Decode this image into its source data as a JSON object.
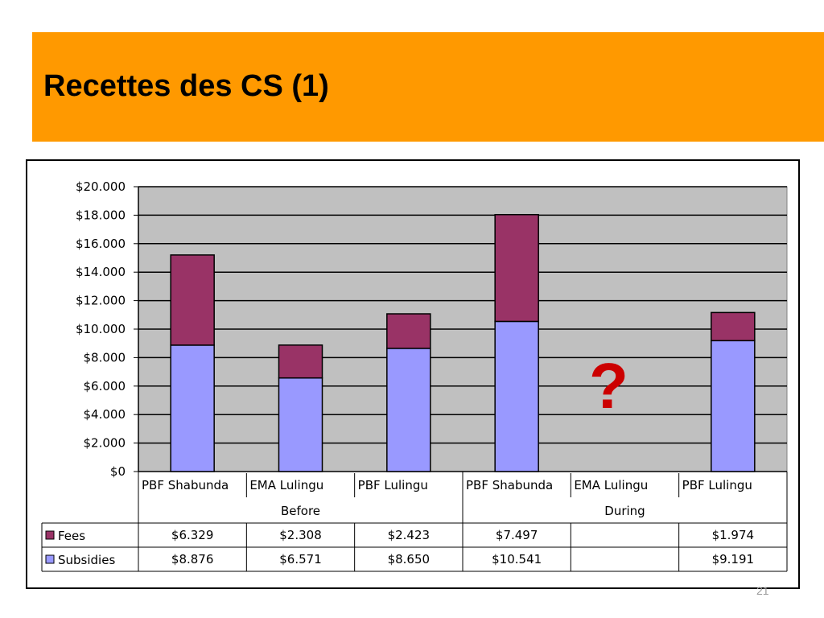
{
  "slide": {
    "title": "Recettes des CS (1)",
    "page_number": "21",
    "annotation": "?"
  },
  "colors": {
    "header": "#ff9900",
    "plot_bg": "#c0c0c0",
    "fees": "#993366",
    "subsidies": "#9999ff",
    "annotation": "#cc0000"
  },
  "chart_data": {
    "type": "bar",
    "stacked": true,
    "categories": [
      "PBF Shabunda",
      "EMA Lulingu",
      "PBF Lulingu",
      "PBF Shabunda",
      "EMA Lulingu",
      "PBF Lulingu"
    ],
    "groups": [
      {
        "label": "Before",
        "count": 3
      },
      {
        "label": "During",
        "count": 3
      }
    ],
    "series": [
      {
        "name": "Subsidies",
        "values": [
          8876,
          6571,
          8650,
          10541,
          null,
          9191
        ],
        "labels": [
          "$8.876",
          "$6.571",
          "$8.650",
          "$10.541",
          "",
          "$9.191"
        ]
      },
      {
        "name": "Fees",
        "values": [
          6329,
          2308,
          2423,
          7497,
          null,
          1974
        ],
        "labels": [
          "$6.329",
          "$2.308",
          "$2.423",
          "$7.497",
          "",
          "$1.974"
        ]
      }
    ],
    "ylim": [
      0,
      20000
    ],
    "yticks": [
      0,
      2000,
      4000,
      6000,
      8000,
      10000,
      12000,
      14000,
      16000,
      18000,
      20000
    ],
    "ytick_labels": [
      "$0",
      "$2.000",
      "$4.000",
      "$6.000",
      "$8.000",
      "$10.000",
      "$12.000",
      "$14.000",
      "$16.000",
      "$18.000",
      "$20.000"
    ],
    "grid": true,
    "data_table": true,
    "table_order": [
      "Fees",
      "Subsidies"
    ]
  }
}
